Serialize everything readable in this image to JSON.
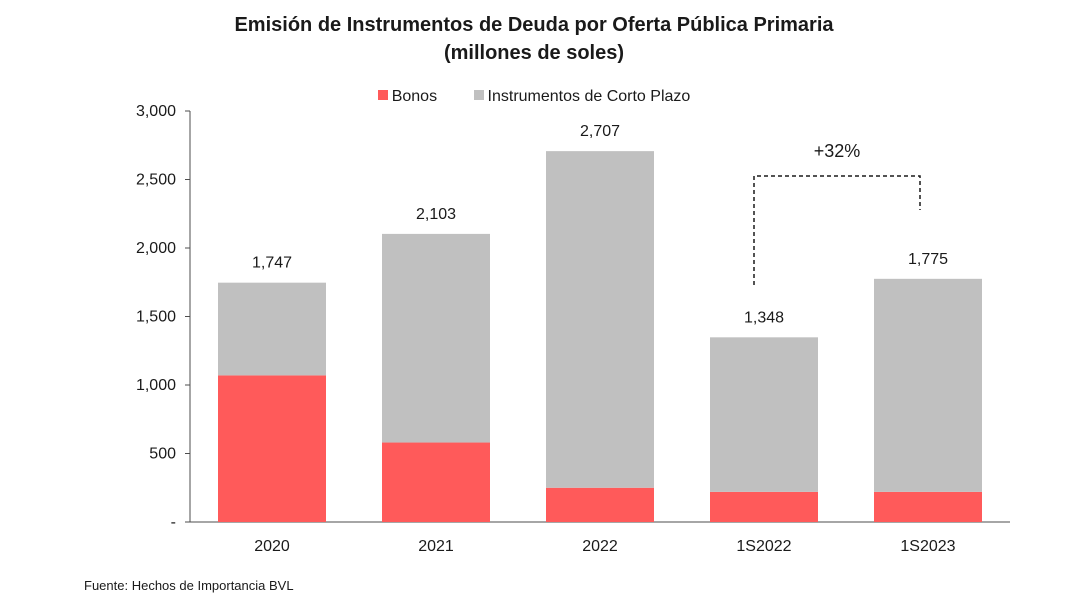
{
  "chart_data": {
    "type": "bar",
    "stacked": true,
    "title_line1": "Emisión de Instrumentos de Deuda por Oferta Pública Primaria",
    "title_line2": "(millones de soles)",
    "categories": [
      "2020",
      "2021",
      "2022",
      "1S2022",
      "1S2023"
    ],
    "series": [
      {
        "name": "Bonos",
        "color": "#ff5a5a",
        "values": [
          1070,
          580,
          250,
          220,
          220
        ]
      },
      {
        "name": "Instrumentos de Corto Plazo",
        "color": "#c0c0c0",
        "values": [
          677,
          1523,
          2457,
          1128,
          1555
        ]
      }
    ],
    "totals": [
      1747,
      2103,
      2707,
      1348,
      1775
    ],
    "total_labels": [
      "1,747",
      "2,103",
      "2,707",
      "1,348",
      "1,775"
    ],
    "ylim": [
      0,
      3000
    ],
    "yticks": [
      0,
      500,
      1000,
      1500,
      2000,
      2500,
      3000
    ],
    "ytick_labels": [
      "-",
      "500",
      "1,000",
      "1,500",
      "2,000",
      "2,500",
      "3,000"
    ],
    "xlabel": "",
    "ylabel": "",
    "legend_position": "top-center",
    "grid": false,
    "annotation": {
      "text": "+32%",
      "from": "1S2022",
      "to": "1S2023"
    }
  },
  "source": "Fuente: Hechos de Importancia BVL"
}
